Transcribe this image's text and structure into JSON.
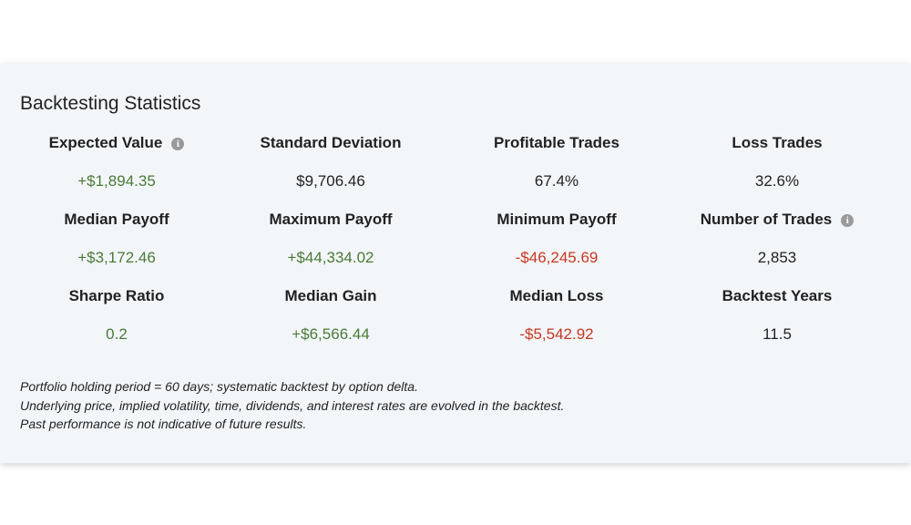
{
  "header": {
    "title": "Backtesting Statistics"
  },
  "stats": [
    {
      "label": "Expected Value",
      "value": "+$1,894.35",
      "color": "#4a7a37",
      "info": true
    },
    {
      "label": "Standard Deviation",
      "value": "$9,706.46",
      "color": "#222222",
      "info": false
    },
    {
      "label": "Profitable Trades",
      "value": "67.4%",
      "color": "#222222",
      "info": false
    },
    {
      "label": "Loss Trades",
      "value": "32.6%",
      "color": "#222222",
      "info": false
    },
    {
      "label": "Median Payoff",
      "value": "+$3,172.46",
      "color": "#4a7a37",
      "info": false
    },
    {
      "label": "Maximum Payoff",
      "value": "+$44,334.02",
      "color": "#4a7a37",
      "info": false
    },
    {
      "label": "Minimum Payoff",
      "value": "-$46,245.69",
      "color": "#c8371f",
      "info": false
    },
    {
      "label": "Number of Trades",
      "value": "2,853",
      "color": "#222222",
      "info": true
    },
    {
      "label": "Sharpe Ratio",
      "value": "0.2",
      "color": "#4a7a37",
      "info": false
    },
    {
      "label": "Median Gain",
      "value": "+$6,566.44",
      "color": "#4a7a37",
      "info": false
    },
    {
      "label": "Median Loss",
      "value": "-$5,542.92",
      "color": "#c8371f",
      "info": false
    },
    {
      "label": "Backtest Years",
      "value": "11.5",
      "color": "#222222",
      "info": false
    }
  ],
  "footnotes": [
    "Portfolio holding period = 60 days; systematic backtest by option delta.",
    "Underlying price, implied volatility, time, dividends, and interest rates are evolved in the backtest.",
    "Past performance is not indicative of future results."
  ]
}
